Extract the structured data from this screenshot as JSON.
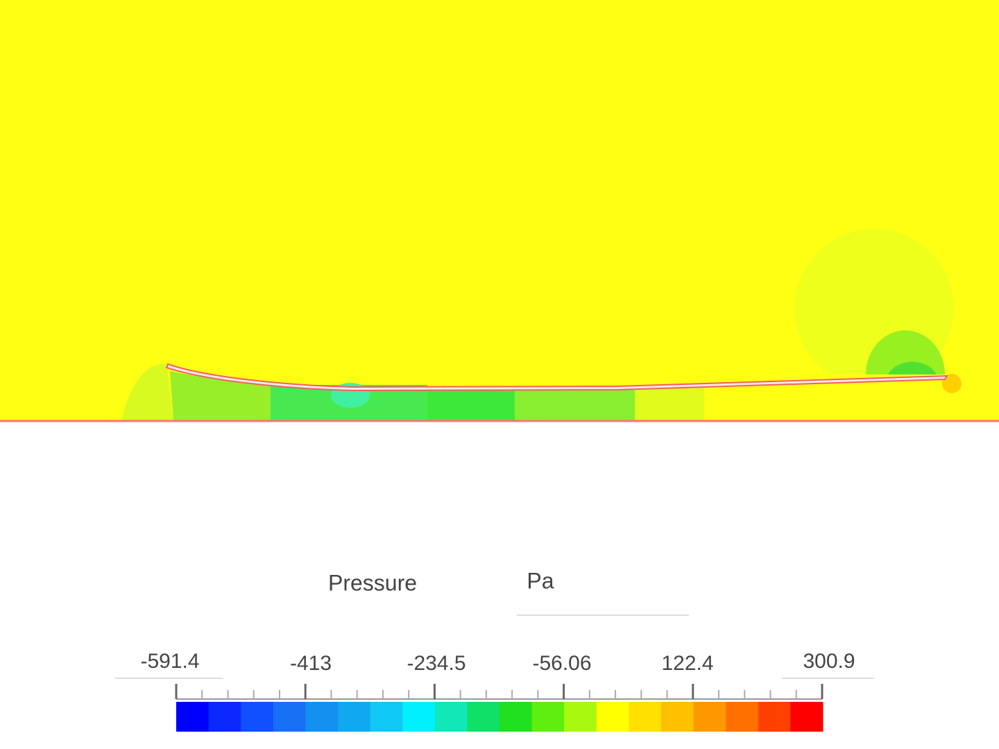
{
  "legend": {
    "title": "Pressure",
    "unit": "Pa",
    "ticks": [
      "-591.4",
      "-413",
      "-234.5",
      "-56.06",
      "122.4",
      "300.9"
    ]
  }
}
